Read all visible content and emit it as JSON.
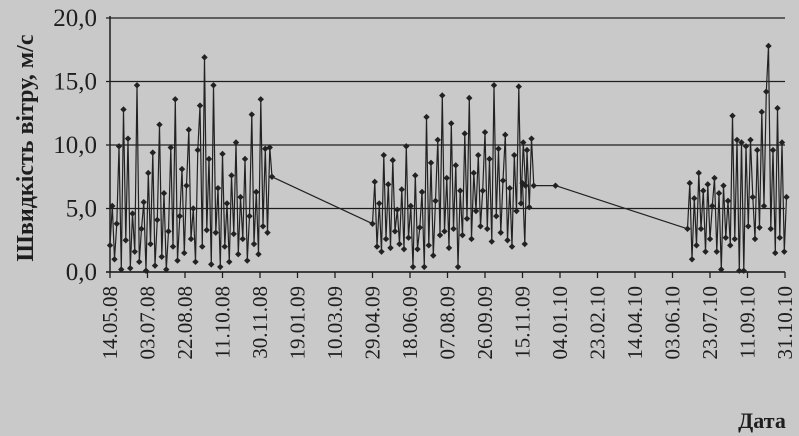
{
  "chart_data": {
    "type": "line",
    "title": "",
    "xlabel": "Дата",
    "ylabel": "Швидкість вітру, м/с",
    "ylim": [
      0,
      20
    ],
    "y_ticks": [
      "0,0",
      "5,0",
      "10,0",
      "15,0",
      "20,0"
    ],
    "x_ticks": [
      "14.05.08",
      "03.07.08",
      "22.08.08",
      "11.10.08",
      "30.11.08",
      "19.01.09",
      "10.03.09",
      "29.04.09",
      "18.06.09",
      "07.08.09",
      "26.09.09",
      "15.11.09",
      "04.01.10",
      "23.02.10",
      "14.04.10",
      "03.06.10",
      "23.07.10",
      "11.09.10",
      "31.10.10"
    ],
    "grid": true,
    "marker": "diamond",
    "colors": {
      "series": "#222222",
      "grid": "#1e1e1e",
      "background": "#c9c9c9"
    },
    "series": [
      {
        "name": "",
        "points": [
          [
            "14.05.08",
            2.1
          ],
          [
            "17.05.08",
            5.2
          ],
          [
            "20.05.08",
            1.0
          ],
          [
            "23.05.08",
            3.8
          ],
          [
            "26.05.08",
            9.9
          ],
          [
            "29.05.08",
            0.2
          ],
          [
            "01.06.08",
            12.8
          ],
          [
            "04.06.08",
            2.5
          ],
          [
            "07.06.08",
            10.5
          ],
          [
            "10.06.08",
            0.3
          ],
          [
            "13.06.08",
            4.6
          ],
          [
            "16.06.08",
            1.6
          ],
          [
            "19.06.08",
            14.7
          ],
          [
            "22.06.08",
            0.8
          ],
          [
            "25.06.08",
            3.4
          ],
          [
            "28.06.08",
            5.5
          ],
          [
            "01.07.08",
            0.1
          ],
          [
            "04.07.08",
            7.8
          ],
          [
            "07.07.08",
            2.2
          ],
          [
            "10.07.08",
            9.4
          ],
          [
            "13.07.08",
            0.5
          ],
          [
            "16.07.08",
            4.1
          ],
          [
            "19.07.08",
            11.6
          ],
          [
            "22.07.08",
            1.2
          ],
          [
            "25.07.08",
            6.2
          ],
          [
            "28.07.08",
            0.2
          ],
          [
            "31.07.08",
            3.2
          ],
          [
            "03.08.08",
            9.8
          ],
          [
            "06.08.08",
            2.0
          ],
          [
            "09.08.08",
            13.6
          ],
          [
            "12.08.08",
            0.9
          ],
          [
            "15.08.08",
            4.4
          ],
          [
            "18.08.08",
            8.1
          ],
          [
            "21.08.08",
            1.5
          ],
          [
            "24.08.08",
            6.8
          ],
          [
            "27.08.08",
            11.2
          ],
          [
            "30.08.08",
            2.6
          ],
          [
            "02.09.08",
            5.0
          ],
          [
            "05.09.08",
            0.8
          ],
          [
            "08.09.08",
            9.6
          ],
          [
            "11.09.08",
            13.1
          ],
          [
            "14.09.08",
            2.0
          ],
          [
            "17.09.08",
            16.9
          ],
          [
            "20.09.08",
            3.3
          ],
          [
            "23.09.08",
            8.9
          ],
          [
            "26.09.08",
            0.6
          ],
          [
            "29.09.08",
            14.7
          ],
          [
            "02.10.08",
            3.1
          ],
          [
            "05.10.08",
            6.6
          ],
          [
            "08.10.08",
            0.4
          ],
          [
            "11.10.08",
            9.3
          ],
          [
            "14.10.08",
            2.0
          ],
          [
            "17.10.08",
            5.4
          ],
          [
            "20.10.08",
            0.8
          ],
          [
            "23.10.08",
            7.6
          ],
          [
            "26.10.08",
            3.0
          ],
          [
            "29.10.08",
            10.2
          ],
          [
            "01.11.08",
            1.4
          ],
          [
            "04.11.08",
            5.9
          ],
          [
            "07.11.08",
            2.6
          ],
          [
            "10.11.08",
            8.9
          ],
          [
            "13.11.08",
            0.9
          ],
          [
            "16.11.08",
            4.4
          ],
          [
            "19.11.08",
            12.4
          ],
          [
            "22.11.08",
            2.2
          ],
          [
            "25.11.08",
            6.3
          ],
          [
            "28.11.08",
            1.4
          ],
          [
            "01.12.08",
            13.6
          ],
          [
            "04.12.08",
            3.6
          ],
          [
            "07.12.08",
            9.7
          ],
          [
            "10.12.08",
            3.1
          ],
          [
            "13.12.08",
            9.8
          ],
          [
            "16.12.08",
            7.5
          ],
          [
            "29.04.09",
            3.8
          ],
          [
            "02.05.09",
            7.1
          ],
          [
            "05.05.09",
            2.0
          ],
          [
            "08.05.09",
            5.4
          ],
          [
            "11.05.09",
            1.6
          ],
          [
            "14.05.09",
            9.2
          ],
          [
            "17.05.09",
            2.6
          ],
          [
            "20.05.09",
            6.9
          ],
          [
            "23.05.09",
            1.9
          ],
          [
            "26.05.09",
            8.8
          ],
          [
            "29.05.09",
            3.2
          ],
          [
            "01.06.09",
            4.9
          ],
          [
            "04.06.09",
            2.2
          ],
          [
            "07.06.09",
            6.5
          ],
          [
            "10.06.09",
            1.8
          ],
          [
            "13.06.09",
            9.9
          ],
          [
            "16.06.09",
            2.7
          ],
          [
            "19.06.09",
            5.2
          ],
          [
            "22.06.09",
            0.4
          ],
          [
            "25.06.09",
            7.6
          ],
          [
            "28.06.09",
            1.8
          ],
          [
            "01.07.09",
            3.5
          ],
          [
            "04.07.09",
            6.3
          ],
          [
            "07.07.09",
            0.4
          ],
          [
            "10.07.09",
            12.2
          ],
          [
            "13.07.09",
            2.1
          ],
          [
            "16.07.09",
            8.6
          ],
          [
            "19.07.09",
            1.3
          ],
          [
            "22.07.09",
            5.6
          ],
          [
            "25.07.09",
            10.4
          ],
          [
            "28.07.09",
            2.9
          ],
          [
            "31.07.09",
            13.9
          ],
          [
            "03.08.09",
            3.2
          ],
          [
            "06.08.09",
            7.4
          ],
          [
            "09.08.09",
            1.9
          ],
          [
            "12.08.09",
            11.7
          ],
          [
            "15.08.09",
            3.4
          ],
          [
            "18.08.09",
            8.4
          ],
          [
            "21.08.09",
            0.4
          ],
          [
            "24.08.09",
            6.4
          ],
          [
            "27.08.09",
            2.9
          ],
          [
            "30.08.09",
            10.9
          ],
          [
            "02.09.09",
            4.2
          ],
          [
            "05.09.09",
            13.7
          ],
          [
            "08.09.09",
            2.6
          ],
          [
            "11.09.09",
            7.8
          ],
          [
            "14.09.09",
            4.8
          ],
          [
            "17.09.09",
            9.2
          ],
          [
            "20.09.09",
            3.6
          ],
          [
            "23.09.09",
            6.4
          ],
          [
            "26.09.09",
            11.0
          ],
          [
            "29.09.09",
            3.4
          ],
          [
            "02.10.09",
            8.9
          ],
          [
            "05.10.09",
            2.4
          ],
          [
            "08.10.09",
            14.7
          ],
          [
            "11.10.09",
            4.4
          ],
          [
            "14.10.09",
            9.7
          ],
          [
            "17.10.09",
            3.1
          ],
          [
            "20.10.09",
            7.2
          ],
          [
            "23.10.09",
            10.8
          ],
          [
            "26.10.09",
            2.5
          ],
          [
            "29.10.09",
            6.6
          ],
          [
            "01.11.09",
            2.0
          ],
          [
            "04.11.09",
            9.2
          ],
          [
            "07.11.09",
            4.8
          ],
          [
            "10.11.09",
            14.6
          ],
          [
            "13.11.09",
            5.4
          ],
          [
            "16.11.09",
            10.2
          ],
          [
            "19.11.09",
            6.8
          ]
        ]
      },
      {
        "name": "",
        "points": [
          [
            "15.11.09",
            7.0
          ],
          [
            "18.11.09",
            2.2
          ],
          [
            "21.11.09",
            9.6
          ],
          [
            "24.11.09",
            5.1
          ],
          [
            "27.11.09",
            10.5
          ],
          [
            "30.11.09",
            6.8
          ],
          [
            "29.12.09",
            6.8
          ],
          [
            "23.06.10",
            3.4
          ],
          [
            "26.06.10",
            7.0
          ],
          [
            "29.06.10",
            1.0
          ],
          [
            "02.07.10",
            5.8
          ],
          [
            "05.07.10",
            2.1
          ],
          [
            "08.07.10",
            7.8
          ],
          [
            "11.07.10",
            3.4
          ],
          [
            "14.07.10",
            6.4
          ],
          [
            "17.07.10",
            1.6
          ],
          [
            "20.07.10",
            6.9
          ],
          [
            "23.07.10",
            2.6
          ],
          [
            "26.07.10",
            5.2
          ],
          [
            "29.07.10",
            7.4
          ],
          [
            "01.08.10",
            1.6
          ],
          [
            "04.08.10",
            6.2
          ],
          [
            "07.08.10",
            0.2
          ],
          [
            "10.08.10",
            6.8
          ],
          [
            "13.08.10",
            2.7
          ],
          [
            "16.08.10",
            5.6
          ],
          [
            "19.08.10",
            2.1
          ],
          [
            "22.08.10",
            12.3
          ],
          [
            "25.08.10",
            2.6
          ],
          [
            "28.08.10",
            10.4
          ],
          [
            "31.08.10",
            0.1
          ],
          [
            "03.09.10",
            10.2
          ],
          [
            "06.09.10",
            0.1
          ],
          [
            "09.09.10",
            9.9
          ],
          [
            "12.09.10",
            3.6
          ],
          [
            "15.09.10",
            10.4
          ],
          [
            "18.09.10",
            5.9
          ],
          [
            "21.09.10",
            2.6
          ],
          [
            "24.09.10",
            9.6
          ],
          [
            "27.09.10",
            3.5
          ],
          [
            "30.09.10",
            12.6
          ],
          [
            "03.10.10",
            5.2
          ],
          [
            "06.10.10",
            14.2
          ],
          [
            "09.10.10",
            17.8
          ],
          [
            "12.10.10",
            3.4
          ],
          [
            "15.10.10",
            9.6
          ],
          [
            "18.10.10",
            1.5
          ],
          [
            "21.10.10",
            12.9
          ],
          [
            "24.10.10",
            2.7
          ],
          [
            "27.10.10",
            10.2
          ],
          [
            "30.10.10",
            1.6
          ],
          [
            "02.11.10",
            5.9
          ]
        ]
      }
    ]
  }
}
